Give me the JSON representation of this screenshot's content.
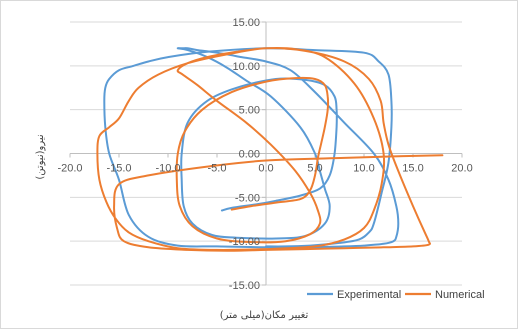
{
  "chart_data": {
    "type": "line",
    "xlabel": "تغییر مکان(میلی متر)",
    "ylabel": "نیرو(نیوتن)",
    "xlim": [
      -20,
      20
    ],
    "ylim": [
      -15,
      15
    ],
    "x_ticks": [
      "-20.0",
      "-15.0",
      "-10.0",
      "-5.0",
      "0.0",
      "5.0",
      "10.0",
      "15.0",
      "20.0"
    ],
    "y_ticks": [
      "15.00",
      "10.00",
      "5.00",
      "0.00",
      "-5.00",
      "-10.00",
      "-15.00"
    ],
    "legend_position": "bottom-right",
    "series": [
      {
        "name": "Experimental",
        "color": "#5B9BD5",
        "x": [
          -4.5,
          -3.5,
          -1.0,
          1.0,
          3.5,
          5.5,
          6.5,
          7.0,
          7.2,
          7.2,
          7.0,
          6.0,
          4.0,
          1.0,
          -3.0,
          -6.0,
          -8.0,
          -8.6,
          -8.6,
          -8.4,
          -7.5,
          -5.5,
          -3.0,
          1.0,
          4.0,
          6.0,
          6.5,
          6.0,
          5.5,
          5.0,
          3.5,
          0.5,
          -2.0,
          -4.0,
          -6.0,
          -8.0,
          -9.0,
          -8.5,
          -8.0,
          -7.0,
          -5.0,
          -2.5,
          0.0,
          2.5,
          5.0,
          8.0,
          11.0,
          12.5,
          13.3,
          13.5,
          13.3,
          13.0,
          12.0,
          10.0,
          8.0,
          4.0,
          0.0,
          -5.0,
          -9.0,
          -12.0,
          -14.0,
          -15.0,
          -16.0,
          -16.4,
          -16.5,
          -16.4,
          -16.0,
          -15.0,
          -13.5,
          -12.0,
          -10.0,
          -6.0,
          0.0,
          5.0,
          10.0,
          11.5,
          12.5,
          12.8,
          12.8,
          12.5,
          11.8,
          11.0,
          10.5,
          9.5,
          7.5,
          4.5,
          2.0,
          0.0
        ],
        "y": [
          -6.5,
          -6.2,
          -5.8,
          -5.4,
          -4.8,
          -4.0,
          -2.5,
          0.0,
          3.0,
          5.0,
          6.5,
          7.8,
          8.4,
          8.5,
          7.5,
          6.0,
          3.5,
          0.0,
          -3.0,
          -6.0,
          -8.0,
          -9.3,
          -9.6,
          -9.7,
          -9.4,
          -8.0,
          -6.0,
          -4.0,
          -2.0,
          0.0,
          3.0,
          6.5,
          8.3,
          9.8,
          11.0,
          11.8,
          12.0,
          12.0,
          12.0,
          11.8,
          11.5,
          11.0,
          10.5,
          9.5,
          7.0,
          3.5,
          0.0,
          -3.0,
          -6.0,
          -8.0,
          -9.5,
          -10.0,
          -10.3,
          -10.5,
          -10.6,
          -10.7,
          -10.7,
          -10.6,
          -10.5,
          -9.5,
          -7.0,
          -3.0,
          0.0,
          3.0,
          6.0,
          7.5,
          8.5,
          9.5,
          10.0,
          10.5,
          11.0,
          11.6,
          12.0,
          11.8,
          11.5,
          10.5,
          9.0,
          6.0,
          3.0,
          -1.0,
          -4.5,
          -8.0,
          -9.0,
          -9.8,
          -10.2,
          -10.5,
          -10.6,
          -10.6
        ]
      },
      {
        "name": "Numerical",
        "color": "#ED7D31",
        "x": [
          -3.5,
          -1.5,
          1.0,
          3.5,
          4.5,
          5.0,
          5.3,
          5.6,
          6.0,
          6.3,
          6.3,
          6.0,
          5.0,
          3.0,
          0.0,
          -3.5,
          -6.5,
          -8.3,
          -9.0,
          -9.1,
          -8.8,
          -7.5,
          -5.0,
          -1.5,
          2.0,
          4.5,
          5.5,
          5.3,
          4.5,
          3.0,
          0.5,
          -2.0,
          -5.0,
          -7.0,
          -8.5,
          -9.0,
          -8.0,
          -6.0,
          -3.0,
          0.0,
          3.0,
          6.0,
          9.0,
          11.0,
          12.0,
          11.8,
          11.0,
          10.0,
          8.0,
          5.0,
          0.0,
          -5.0,
          -9.0,
          -12.0,
          -14.0,
          -15.3,
          -16.3,
          -17.0,
          -17.2,
          -17.0,
          -16.0,
          -15.0,
          -14.0,
          -13.0,
          -11.0,
          -8.0,
          -4.0,
          0.0,
          4.0,
          8.0,
          10.5,
          11.7,
          12.0,
          12.5,
          13.5,
          15.0,
          16.2,
          16.6,
          16.6,
          15.0,
          12.0,
          8.0,
          4.0,
          0.0,
          -4.0,
          -8.0,
          -12.0,
          -14.5,
          -15.2,
          -15.5,
          -15.0,
          -12.0,
          -6.0,
          0.0,
          8.0,
          14.0,
          18.0
        ],
        "y": [
          -6.4,
          -6.0,
          -5.6,
          -5.2,
          -4.2,
          -2.5,
          -0.5,
          1.0,
          3.0,
          5.0,
          6.5,
          7.8,
          8.5,
          8.6,
          8.2,
          7.0,
          5.0,
          2.5,
          0.0,
          -3.0,
          -6.0,
          -8.3,
          -9.7,
          -10.1,
          -10.0,
          -9.2,
          -8.0,
          -6.5,
          -4.5,
          -2.0,
          1.0,
          3.5,
          6.0,
          7.8,
          9.0,
          9.5,
          10.3,
          11.0,
          11.6,
          12.0,
          11.9,
          11.0,
          8.0,
          4.0,
          0.0,
          -3.5,
          -6.5,
          -8.5,
          -9.8,
          -10.6,
          -10.9,
          -11.0,
          -10.8,
          -10.0,
          -9.0,
          -7.5,
          -5.5,
          -3.0,
          0.0,
          2.0,
          3.0,
          4.0,
          6.0,
          7.5,
          9.0,
          10.3,
          11.3,
          12.0,
          11.7,
          10.5,
          8.5,
          6.0,
          3.5,
          1.0,
          -2.0,
          -6.0,
          -9.0,
          -10.0,
          -10.4,
          -10.6,
          -10.7,
          -10.8,
          -10.9,
          -11.0,
          -11.1,
          -11.0,
          -10.7,
          -10.0,
          -8.5,
          -6.0,
          -3.5,
          -2.5,
          -1.5,
          -0.8,
          -0.5,
          -0.3,
          -0.2
        ]
      }
    ]
  }
}
